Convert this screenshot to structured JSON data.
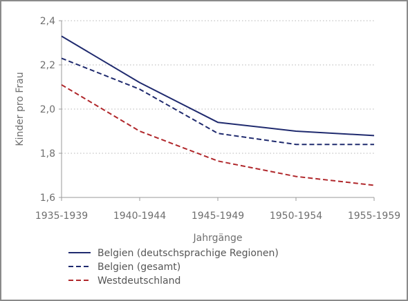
{
  "chart_data": {
    "type": "line",
    "xlabel": "Jahrgänge",
    "ylabel": "Kinder pro Frau",
    "categories": [
      "1935-1939",
      "1940-1944",
      "1945-1949",
      "1950-1954",
      "1955-1959"
    ],
    "y_ticks": [
      "1,6",
      "1,8",
      "2,0",
      "2,2",
      "2,4"
    ],
    "ylim": [
      1.6,
      2.4
    ],
    "grid": "horizontal dotted",
    "legend_position": "bottom-left",
    "series": [
      {
        "name": "Belgien (deutschsprachige Regionen)",
        "values": [
          2.33,
          2.12,
          1.94,
          1.9,
          1.88
        ],
        "color": "#1f2a6e",
        "dash": "solid"
      },
      {
        "name": "Belgien (gesamt)",
        "values": [
          2.23,
          2.09,
          1.89,
          1.84,
          1.84
        ],
        "color": "#1f2a6e",
        "dash": "dashed"
      },
      {
        "name": "Westdeutschland",
        "values": [
          2.11,
          1.9,
          1.765,
          1.695,
          1.655
        ],
        "color": "#b0272b",
        "dash": "dashed"
      }
    ]
  }
}
